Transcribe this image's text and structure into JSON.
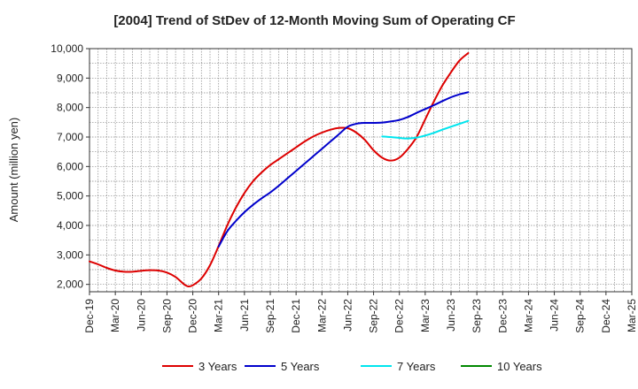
{
  "chart_data": {
    "type": "line",
    "title": "[2004]  Trend of StDev of 12-Month Moving Sum of Operating CF",
    "xlabel": "",
    "ylabel": "Amount (million yen)",
    "ylim": [
      1750,
      10000
    ],
    "yticks": [
      2000,
      3000,
      4000,
      5000,
      6000,
      7000,
      8000,
      9000,
      10000
    ],
    "ytick_labels": [
      "2,000",
      "3,000",
      "4,000",
      "5,000",
      "6,000",
      "7,000",
      "8,000",
      "9,000",
      "10,000"
    ],
    "x_tick_labels": [
      "Dec-19",
      "Mar-20",
      "Jun-20",
      "Sep-20",
      "Dec-20",
      "Mar-21",
      "Jun-21",
      "Sep-21",
      "Dec-21",
      "Mar-22",
      "Jun-22",
      "Sep-22",
      "Dec-22",
      "Mar-23",
      "Jun-23",
      "Sep-23",
      "Dec-23",
      "Mar-24",
      "Jun-24",
      "Sep-24",
      "Dec-24",
      "Mar-25"
    ],
    "grid": true,
    "legend_position": "bottom",
    "series": [
      {
        "name": "3 Years",
        "color": "#dd0000",
        "points": [
          [
            0,
            2780
          ],
          [
            1,
            2680
          ],
          [
            2,
            2560
          ],
          [
            3,
            2470
          ],
          [
            4,
            2430
          ],
          [
            5,
            2430
          ],
          [
            6,
            2460
          ],
          [
            7,
            2480
          ],
          [
            8,
            2470
          ],
          [
            9,
            2400
          ],
          [
            10,
            2250
          ],
          [
            11,
            2000
          ],
          [
            11.5,
            1930
          ],
          [
            12,
            1970
          ],
          [
            13,
            2200
          ],
          [
            14,
            2650
          ],
          [
            15,
            3300
          ],
          [
            16,
            4000
          ],
          [
            17,
            4600
          ],
          [
            18,
            5100
          ],
          [
            19,
            5500
          ],
          [
            20,
            5800
          ],
          [
            21,
            6050
          ],
          [
            22,
            6250
          ],
          [
            23,
            6450
          ],
          [
            24,
            6650
          ],
          [
            25,
            6850
          ],
          [
            26,
            7020
          ],
          [
            27,
            7150
          ],
          [
            28,
            7250
          ],
          [
            29,
            7310
          ],
          [
            30,
            7300
          ],
          [
            31,
            7150
          ],
          [
            32,
            6900
          ],
          [
            33,
            6550
          ],
          [
            34,
            6300
          ],
          [
            35,
            6200
          ],
          [
            36,
            6300
          ],
          [
            37,
            6600
          ],
          [
            38,
            7000
          ],
          [
            39,
            7600
          ],
          [
            40,
            8200
          ],
          [
            41,
            8750
          ],
          [
            42,
            9200
          ],
          [
            43,
            9600
          ],
          [
            44,
            9850
          ]
        ]
      },
      {
        "name": "5 Years",
        "color": "#0000cc",
        "points": [
          [
            15,
            3280
          ],
          [
            16,
            3800
          ],
          [
            17,
            4150
          ],
          [
            18,
            4450
          ],
          [
            19,
            4700
          ],
          [
            20,
            4920
          ],
          [
            21,
            5120
          ],
          [
            22,
            5350
          ],
          [
            23,
            5600
          ],
          [
            24,
            5850
          ],
          [
            25,
            6100
          ],
          [
            26,
            6350
          ],
          [
            27,
            6600
          ],
          [
            28,
            6850
          ],
          [
            29,
            7100
          ],
          [
            30,
            7350
          ],
          [
            31,
            7450
          ],
          [
            32,
            7480
          ],
          [
            33,
            7480
          ],
          [
            34,
            7490
          ],
          [
            35,
            7530
          ],
          [
            36,
            7580
          ],
          [
            37,
            7680
          ],
          [
            38,
            7820
          ],
          [
            39,
            7950
          ],
          [
            40,
            8080
          ],
          [
            41,
            8220
          ],
          [
            42,
            8350
          ],
          [
            43,
            8450
          ],
          [
            44,
            8520
          ]
        ]
      },
      {
        "name": "7 Years",
        "color": "#00e5ee",
        "points": [
          [
            34,
            7020
          ],
          [
            35,
            7000
          ],
          [
            36,
            6970
          ],
          [
            37,
            6950
          ],
          [
            38,
            6980
          ],
          [
            39,
            7050
          ],
          [
            40,
            7140
          ],
          [
            41,
            7250
          ],
          [
            42,
            7350
          ],
          [
            43,
            7450
          ],
          [
            44,
            7550
          ]
        ]
      },
      {
        "name": "10 Years",
        "color": "#008800",
        "points": []
      }
    ]
  }
}
